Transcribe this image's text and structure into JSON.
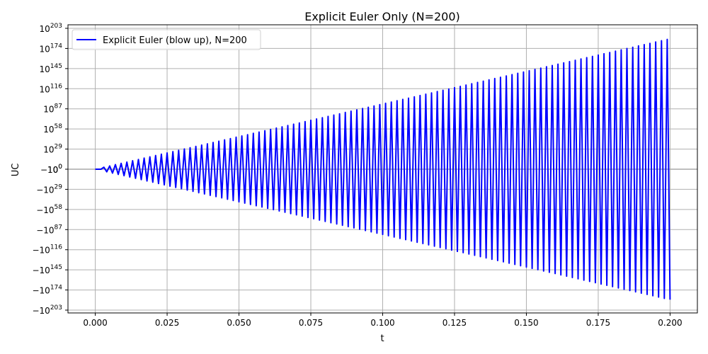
{
  "chart_data": {
    "type": "line",
    "title": "Explicit Euler Only (N=200)",
    "xlabel": "t",
    "ylabel": "UC",
    "xscale": "linear",
    "yscale": "symlog",
    "xlim": [
      -0.0095,
      0.2095
    ],
    "x_ticks": [
      "0.000",
      "0.025",
      "0.050",
      "0.075",
      "0.100",
      "0.125",
      "0.150",
      "0.175",
      "0.200"
    ],
    "x_tick_values": [
      0,
      0.025,
      0.05,
      0.075,
      0.1,
      0.125,
      0.15,
      0.175,
      0.2
    ],
    "y_ticks": [
      {
        "sign": "",
        "exp": "203"
      },
      {
        "sign": "",
        "exp": "174"
      },
      {
        "sign": "",
        "exp": "145"
      },
      {
        "sign": "",
        "exp": "116"
      },
      {
        "sign": "",
        "exp": "87"
      },
      {
        "sign": "",
        "exp": "58"
      },
      {
        "sign": "",
        "exp": "29"
      },
      {
        "sign": "−",
        "exp": "0"
      },
      {
        "sign": "",
        "exp": "0"
      },
      {
        "sign": "−",
        "exp": "29"
      },
      {
        "sign": "−",
        "exp": "58"
      },
      {
        "sign": "−",
        "exp": "87"
      },
      {
        "sign": "−",
        "exp": "116"
      },
      {
        "sign": "−",
        "exp": "145"
      },
      {
        "sign": "−",
        "exp": "174"
      },
      {
        "sign": "−",
        "exp": "203"
      }
    ],
    "y_tick_decades": [
      203,
      174,
      145,
      116,
      87,
      58,
      29,
      0,
      0,
      -29,
      -58,
      -87,
      -116,
      -145,
      -174,
      -203
    ],
    "grid": true,
    "legend_position": "upper left",
    "series": [
      {
        "name": "Explicit Euler (blow up), N=200",
        "color": "#0000ff",
        "n_steps": 200,
        "t_start": 0.0,
        "t_end": 0.2,
        "signed_log10_magnitude_growth_per_step": 0.94,
        "description": "Alternating-sign oscillation; |UC| grows ~0.94 decades per step, reaching ~1e187 at t=0.2 (final value negative)"
      }
    ]
  },
  "legend": {
    "label": "Explicit Euler (blow up), N=200"
  },
  "colors": {
    "line": "#0000ff",
    "grid": "#b0b0b0",
    "axes": "#000000"
  }
}
